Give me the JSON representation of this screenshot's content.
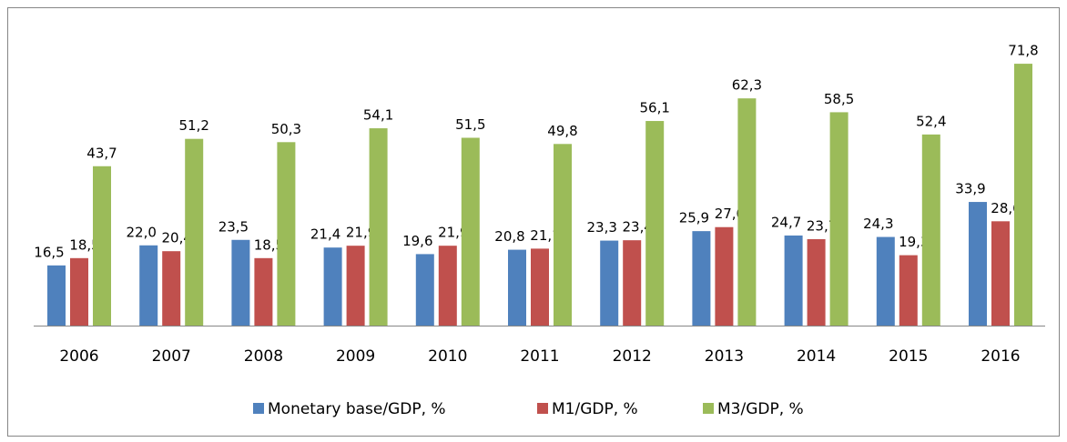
{
  "chart_data": {
    "type": "bar",
    "categories": [
      "2006",
      "2007",
      "2008",
      "2009",
      "2010",
      "2011",
      "2012",
      "2013",
      "2014",
      "2015",
      "2016"
    ],
    "series": [
      {
        "name": "Monetary base/GDP, %",
        "color": "#4f81bd",
        "values": [
          16.5,
          22.0,
          23.5,
          21.4,
          19.6,
          20.8,
          23.3,
          25.9,
          24.7,
          24.3,
          33.9
        ],
        "value_labels": [
          "16,5",
          "22,0",
          "23,5",
          "21,4",
          "19,6",
          "20,8",
          "23,3",
          "25,9",
          "24,7",
          "24,3",
          "33,9"
        ]
      },
      {
        "name": "M1/GDP, %",
        "color": "#c0504d",
        "values": [
          18.5,
          20.4,
          18.5,
          21.9,
          21.9,
          21.1,
          23.4,
          27.0,
          23.7,
          19.3,
          28.6
        ],
        "value_labels": [
          "18,5",
          "20,4",
          "18,5",
          "21,9",
          "21,9",
          "21,1",
          "23,4",
          "27,0",
          "23,7",
          "19,3",
          "28,6"
        ]
      },
      {
        "name": "M3/GDP, %",
        "color": "#9bbb59",
        "values": [
          43.7,
          51.2,
          50.3,
          54.1,
          51.5,
          49.8,
          56.1,
          62.3,
          58.5,
          52.4,
          71.8
        ],
        "value_labels": [
          "43,7",
          "51,2",
          "50,3",
          "54,1",
          "51,5",
          "49,8",
          "56,1",
          "62,3",
          "58,5",
          "52,4",
          "71,8"
        ]
      }
    ]
  }
}
